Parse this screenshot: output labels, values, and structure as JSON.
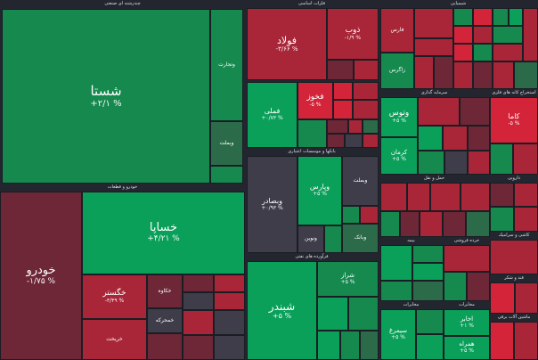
{
  "sections": {
    "chemical": "شیمیایی",
    "refining": "فرآورده های نفتی",
    "basic_metals": "فلزات اساسی",
    "mining": "استخراج کانه های فلزی",
    "banks": "بانکها و موسسات اعتباری",
    "auto": "خودرو و قطعات",
    "investment": "سرمایه گذاری",
    "cement": "سیمان",
    "multi": "چندرشته ای صنعتی",
    "telecom": "مخابرات",
    "pharma": "دارویی",
    "food": "غذایی",
    "transport": "حمل و نقل",
    "insurance": "بیمه",
    "agri": "زراعت",
    "retail": "خرده فروشی",
    "tile": "کاشی و سرامیک",
    "sugar": "قند و شکر",
    "electric": "ماشین آلات برقی"
  },
  "tiles": {
    "shasta": {
      "name": "شستا",
      "change": "+۲/۱ %"
    },
    "khodro": {
      "name": "خودرو",
      "change": "-۱/۷۵ %"
    },
    "khapa": {
      "name": "خساپا",
      "change": "+۴/۲۱ %"
    },
    "shebandar": {
      "name": "شبندر",
      "change": "+۵ %"
    },
    "foulad": {
      "name": "فولاد",
      "change": "-۳/۶۶ %"
    },
    "zob": {
      "name": "ذوب",
      "change": "-۱/۹ %"
    },
    "fakhouz": {
      "name": "فخوز",
      "change": "-۵ %"
    },
    "fameli": {
      "name": "فملی",
      "change": "+۰/۷۳ %"
    },
    "vatos": {
      "name": "وتوس",
      "change": "+۵ %"
    },
    "kerman": {
      "name": "کرمان",
      "change": "+۵ %"
    },
    "kama": {
      "name": "کاما",
      "change": "-۵ %"
    },
    "vebsader": {
      "name": "وبصادر",
      "change": "+۰/۹۳ %"
    },
    "vpars": {
      "name": "وپارس",
      "change": "+۵ %"
    },
    "khegostar": {
      "name": "خگستر",
      "change": "-۳/۴۹ %"
    },
    "shepna": {
      "name": "شپنا",
      "change": "+۵ %"
    },
    "sheraz": {
      "name": "شراز",
      "change": "+۵ %"
    },
    "vaghadir": {
      "name": "وغدیر",
      "change": "+۱ %"
    },
    "vesapa": {
      "name": "وساپا",
      "change": "+۲ %"
    },
    "simorgh": {
      "name": "سیمرغ",
      "change": "+۵ %"
    },
    "hamrah": {
      "name": "همراه",
      "change": "+۵ %"
    },
    "akhaber": {
      "name": "اخابر",
      "change": "+۱ %"
    }
  },
  "small_labels": [
    "وتجارت",
    "وبملت",
    "وبمل",
    "ونوین",
    "خمحرکه",
    "خریخت",
    "خکاوه",
    "خاهن",
    "فارس",
    "شبریز",
    "شیراز",
    "زاگرس",
    "شپدیس",
    "پارسان",
    "جم",
    "وبانک",
    "ونفت",
    "کگل",
    "کچاد",
    "فسرب",
    "فنوال",
    "ولسپا",
    "شتران"
  ]
}
